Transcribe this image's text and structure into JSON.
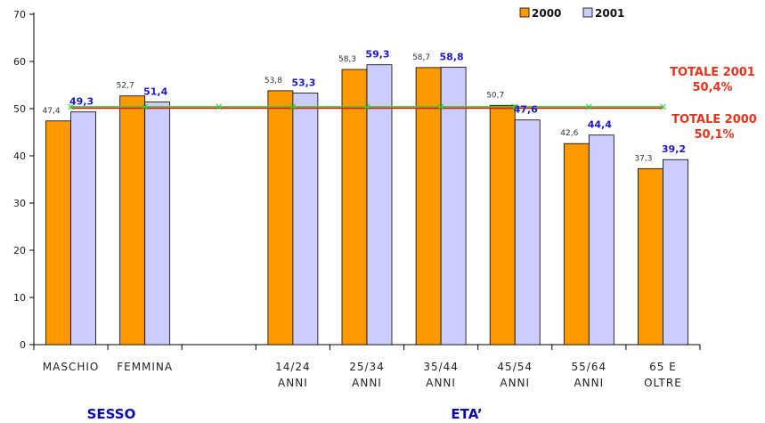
{
  "chart_data": {
    "type": "bar",
    "categories": [
      [
        "MASCHIO"
      ],
      [
        "FEMMINA"
      ],
      [],
      [
        "14/24",
        "ANNI"
      ],
      [
        "25/34",
        "ANNI"
      ],
      [
        "35/44",
        "ANNI"
      ],
      [
        "45/54",
        "ANNI"
      ],
      [
        "55/64",
        "ANNI"
      ],
      [
        "65 E",
        "OLTRE"
      ]
    ],
    "series": [
      {
        "name": "2000",
        "color": "#ff9900",
        "values": [
          47.4,
          52.7,
          null,
          53.8,
          58.3,
          58.7,
          50.7,
          42.6,
          37.3
        ],
        "labels": [
          "47,4",
          "52,7",
          "",
          "53,8",
          "58,3",
          "58,7",
          "50,7",
          "42,6",
          "37,3"
        ]
      },
      {
        "name": "2001",
        "color": "#ccccff",
        "values": [
          49.3,
          51.4,
          null,
          53.3,
          59.3,
          58.8,
          47.6,
          44.4,
          39.2
        ],
        "labels": [
          "49,3",
          "51,4",
          "",
          "53,3",
          "59,3",
          "58,8",
          "47,6",
          "44,4",
          "39,2"
        ]
      }
    ],
    "ylim": [
      0,
      70
    ],
    "yticks": [
      0,
      10,
      20,
      30,
      40,
      50,
      60,
      70
    ],
    "reference_lines": [
      {
        "label": [
          "TOTALE 2001",
          "50,4%"
        ],
        "value": 50.4,
        "color": "#33cc33"
      },
      {
        "label": [
          "TOTALE 2000",
          "50,1%"
        ],
        "value": 50.1,
        "color": "#ff0000"
      }
    ],
    "groups": [
      "SESSO",
      "ETA’"
    ],
    "legend": "top-right",
    "grid": false
  }
}
